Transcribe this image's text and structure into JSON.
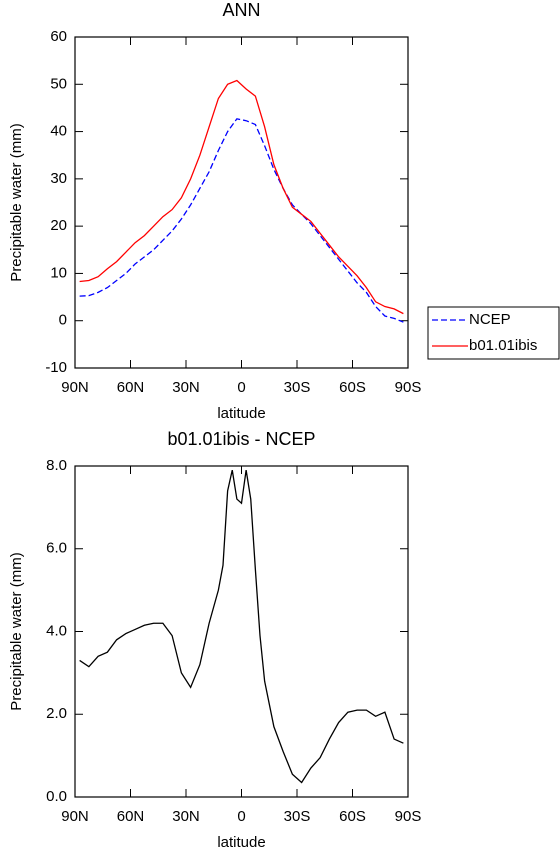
{
  "chart_data": [
    {
      "type": "line",
      "title": "ANN",
      "xlabel": "latitude",
      "ylabel": "Precipitable water (mm)",
      "x": [
        87.5,
        82.5,
        77.5,
        72.5,
        67.5,
        62.5,
        57.5,
        52.5,
        47.5,
        42.5,
        37.5,
        32.5,
        27.5,
        22.5,
        17.5,
        12.5,
        7.5,
        2.5,
        -2.5,
        -7.5,
        -12.5,
        -17.5,
        -22.5,
        -27.5,
        -32.5,
        -37.5,
        -42.5,
        -47.5,
        -52.5,
        -57.5,
        -62.5,
        -67.5,
        -72.5,
        -77.5,
        -82.5,
        -87.5
      ],
      "series": [
        {
          "name": "NCEP",
          "color": "#0000ff",
          "dash": true,
          "values": [
            5.2,
            5.3,
            6,
            7,
            8.5,
            10,
            12,
            13.5,
            15,
            17,
            19,
            21.5,
            24.5,
            28,
            31.5,
            36,
            40,
            42.7,
            42.3,
            41.5,
            37,
            32,
            28,
            24.5,
            22.5,
            20.5,
            18,
            15.5,
            13,
            10.5,
            8,
            6,
            3,
            1,
            0.5,
            -0.3
          ]
        },
        {
          "name": "b01.01ibis",
          "color": "#ff0000",
          "dash": false,
          "values": [
            8.3,
            8.5,
            9.3,
            11,
            12.5,
            14.5,
            16.5,
            18,
            20,
            22,
            23.5,
            26,
            30,
            35,
            41,
            47,
            50,
            50.8,
            49,
            47.5,
            41,
            33,
            28,
            24,
            22.5,
            21,
            18.5,
            16,
            13.5,
            11.5,
            9.5,
            7,
            4,
            3,
            2.5,
            1.5
          ]
        }
      ],
      "xlim": [
        90,
        -90
      ],
      "xticks": [
        {
          "value": 90,
          "label": "90N"
        },
        {
          "value": 60,
          "label": "60N"
        },
        {
          "value": 30,
          "label": "30N"
        },
        0,
        {
          "value": -30,
          "label": "30S"
        },
        {
          "value": -60,
          "label": "60S"
        },
        {
          "value": -90,
          "label": "90S"
        }
      ],
      "ylim": [
        -10,
        60
      ],
      "yticks": [
        -10,
        0,
        10,
        20,
        30,
        40,
        50,
        60
      ],
      "legend": "right"
    },
    {
      "type": "line",
      "title": "b01.01ibis - NCEP",
      "xlabel": "latitude",
      "ylabel": "Precipitable water (mm)",
      "x": [
        87.5,
        82.5,
        77.5,
        72.5,
        67.5,
        62.5,
        57.5,
        52.5,
        47.5,
        42.5,
        37.5,
        32.5,
        27.5,
        22.5,
        17.5,
        12.5,
        10,
        7.5,
        5,
        2.5,
        0,
        -2.5,
        -5,
        -7.5,
        -10,
        -12.5,
        -17.5,
        -22.5,
        -27.5,
        -32.5,
        -37.5,
        -42.5,
        -47.5,
        -52.5,
        -57.5,
        -62.5,
        -67.5,
        -72.5,
        -77.5,
        -82.5,
        -87.5
      ],
      "series": [
        {
          "name": null,
          "color": "#000000",
          "dash": false,
          "values": [
            3.3,
            3.15,
            3.4,
            3.5,
            3.8,
            3.95,
            4.05,
            4.15,
            4.2,
            4.2,
            3.9,
            3.0,
            2.65,
            3.2,
            4.2,
            5.0,
            5.6,
            7.4,
            7.9,
            7.2,
            7.1,
            7.9,
            7.2,
            5.5,
            3.9,
            2.8,
            1.7,
            1.1,
            0.55,
            0.35,
            0.7,
            0.95,
            1.4,
            1.8,
            2.05,
            2.1,
            2.1,
            1.95,
            2.05,
            1.4,
            1.3
          ]
        }
      ],
      "xlim": [
        90,
        -90
      ],
      "xticks": [
        {
          "value": 90,
          "label": "90N"
        },
        {
          "value": 60,
          "label": "60N"
        },
        {
          "value": 30,
          "label": "30N"
        },
        0,
        {
          "value": -30,
          "label": "30S"
        },
        {
          "value": -60,
          "label": "60S"
        },
        {
          "value": -90,
          "label": "90S"
        }
      ],
      "ylim": [
        0,
        8
      ],
      "yticks": [
        {
          "value": 0,
          "label": "0.0"
        },
        {
          "value": 2,
          "label": "2.0"
        },
        {
          "value": 4,
          "label": "4.0"
        },
        {
          "value": 6,
          "label": "6.0"
        },
        {
          "value": 8,
          "label": "8.0"
        }
      ]
    }
  ]
}
